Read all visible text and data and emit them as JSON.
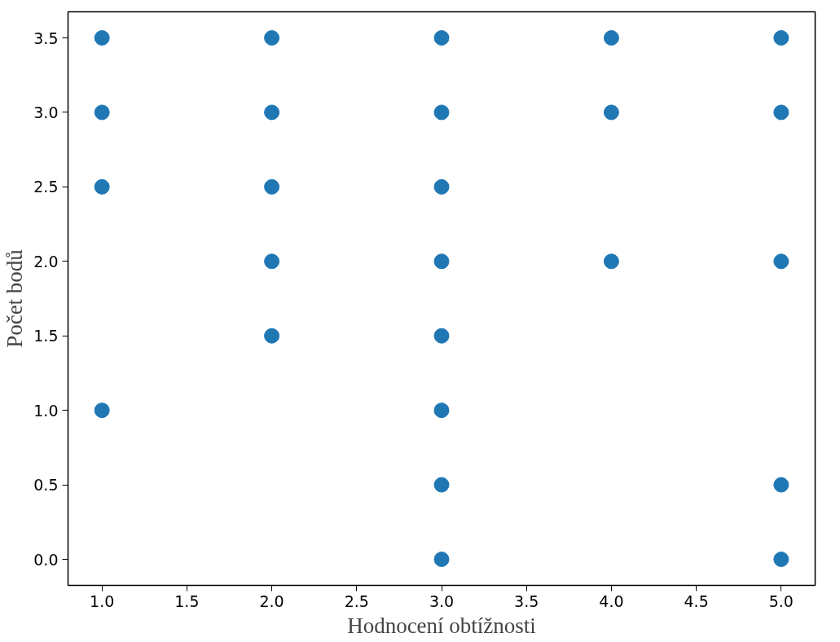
{
  "chart_data": {
    "type": "scatter",
    "xlabel": "Hodnocení obtížnosti",
    "ylabel": "Počet bodů",
    "x": [
      1,
      1,
      1,
      1,
      2,
      2,
      2,
      2,
      2,
      3,
      3,
      3,
      3,
      3,
      3,
      3,
      3,
      4,
      4,
      4,
      5,
      5,
      5,
      5,
      5
    ],
    "series": [
      {
        "color": "#1f77b4",
        "values": [
          3.5,
          3.0,
          2.5,
          1.0,
          3.5,
          3.0,
          2.5,
          2.0,
          1.5,
          3.5,
          3.0,
          2.5,
          2.0,
          1.5,
          1.0,
          0.5,
          0.0,
          3.5,
          3.0,
          2.0,
          3.5,
          3.0,
          2.0,
          0.5,
          0.0
        ]
      }
    ],
    "xlim": [
      0.8,
      5.2
    ],
    "xticks": [
      {
        "value": 1,
        "label": "1.0"
      },
      {
        "value": 1.5,
        "label": "1.5"
      },
      {
        "value": 2,
        "label": "2.0"
      },
      {
        "value": 2.5,
        "label": "2.5"
      },
      {
        "value": 3,
        "label": "3.0"
      },
      {
        "value": 3.5,
        "label": "3.5"
      },
      {
        "value": 4,
        "label": "4.0"
      },
      {
        "value": 4.5,
        "label": "4.5"
      },
      {
        "value": 5,
        "label": "5.0"
      }
    ],
    "ylim": [
      -0.175,
      3.675
    ],
    "yticks": [
      {
        "value": 0,
        "label": "0.0"
      },
      {
        "value": 0.5,
        "label": "0.5"
      },
      {
        "value": 1,
        "label": "1.0"
      },
      {
        "value": 1.5,
        "label": "1.5"
      },
      {
        "value": 2,
        "label": "2.0"
      },
      {
        "value": 2.5,
        "label": "2.5"
      },
      {
        "value": 3,
        "label": "3.0"
      },
      {
        "value": 3.5,
        "label": "3.5"
      }
    ],
    "grid": false,
    "marker": "circle"
  }
}
